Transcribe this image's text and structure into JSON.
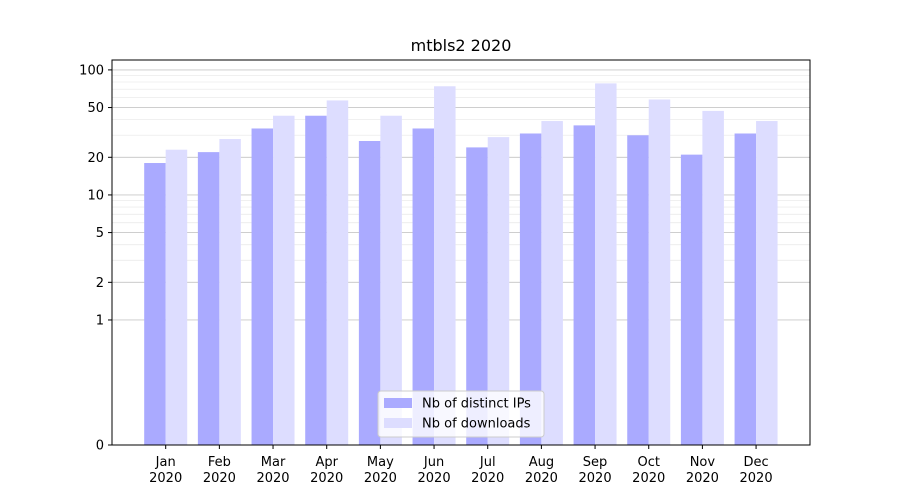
{
  "chart_data": {
    "type": "bar",
    "title": "mtbls2 2020",
    "xlabel": "",
    "ylabel": "",
    "yscale": "symlog",
    "ylim": [
      0,
      120
    ],
    "ytick_labels": [
      "0",
      "1",
      "2",
      "5",
      "10",
      "20",
      "50",
      "100"
    ],
    "ytick_values": [
      0,
      1,
      2,
      5,
      10,
      20,
      50,
      100
    ],
    "grid": true,
    "legend_position": "bottom-center",
    "categories": [
      "Jan\n2020",
      "Feb\n2020",
      "Mar\n2020",
      "Apr\n2020",
      "May\n2020",
      "Jun\n2020",
      "Jul\n2020",
      "Aug\n2020",
      "Sep\n2020",
      "Oct\n2020",
      "Nov\n2020",
      "Dec\n2020"
    ],
    "series": [
      {
        "name": "Nb of distinct IPs",
        "color": "#aaaaff",
        "values": [
          18,
          22,
          34,
          43,
          27,
          34,
          24,
          31,
          36,
          30,
          21,
          31
        ]
      },
      {
        "name": "Nb of downloads",
        "color": "#ddddff",
        "values": [
          23,
          28,
          43,
          57,
          43,
          74,
          29,
          39,
          78,
          58,
          47,
          39
        ]
      }
    ]
  }
}
